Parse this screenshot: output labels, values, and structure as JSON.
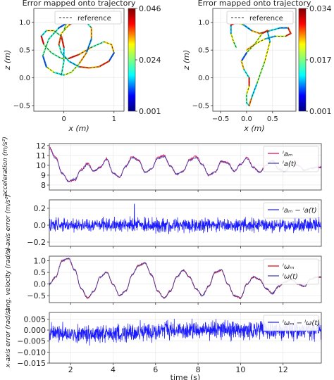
{
  "chart_data": [
    {
      "type": "line",
      "title": "Error mapped onto trajectory",
      "xlabel": "x (m)",
      "ylabel": "z (m)",
      "xlim": [
        -0.6,
        1.2
      ],
      "ylim": [
        -0.6,
        1.25
      ],
      "xticks": [
        "0",
        "1"
      ],
      "xtick_values": [
        0,
        1
      ],
      "yticks": [
        "−0.5",
        "0.0",
        "0.5",
        "1.0"
      ],
      "ytick_values": [
        -0.5,
        0,
        0.5,
        1.0
      ],
      "legend": [
        "reference"
      ],
      "legend_position": "top-right",
      "colorbar": {
        "ticks": [
          "0.046",
          "0.024",
          "0.001"
        ],
        "min": 0.001,
        "max": 0.046
      },
      "series": [
        {
          "name": "reference",
          "style": "dashed",
          "x": [
            -0.05,
            0.0,
            0.0,
            -0.05,
            -0.2,
            -0.35,
            -0.45,
            -0.4,
            -0.25,
            -0.05,
            0.1,
            0.3,
            0.55,
            0.8,
            0.95,
            1.0,
            0.9,
            0.7,
            0.5,
            0.3,
            0.1,
            -0.05,
            -0.1,
            -0.05,
            0.1,
            0.3,
            0.45,
            0.55,
            0.55,
            0.45,
            0.3,
            0.15,
            0.0,
            -0.2,
            -0.35,
            -0.42,
            -0.3,
            -0.1,
            0.05,
            0.0
          ],
          "y": [
            0.05,
            0.3,
            0.55,
            0.75,
            0.85,
            0.85,
            0.75,
            0.6,
            0.45,
            0.35,
            0.35,
            0.42,
            0.55,
            0.65,
            0.6,
            0.45,
            0.3,
            0.2,
            0.18,
            0.2,
            0.3,
            0.45,
            0.6,
            0.8,
            0.95,
            1.05,
            1.0,
            0.9,
            0.7,
            0.45,
            0.25,
            0.1,
            0.05,
            0.1,
            0.2,
            0.4,
            0.7,
            0.9,
            0.98,
            0.85
          ]
        }
      ]
    },
    {
      "type": "line",
      "title": "Error mapped onto trajectory",
      "xlabel": "x (m)",
      "ylabel": "z (m)",
      "xlim": [
        -0.65,
        0.95
      ],
      "ylim": [
        -0.6,
        1.25
      ],
      "xticks": [
        "−0.5",
        "0.0",
        "0.5"
      ],
      "xtick_values": [
        -0.5,
        0,
        0.5
      ],
      "yticks": [
        "−0.5",
        "0.0",
        "0.5",
        "1.0"
      ],
      "ytick_values": [
        -0.5,
        0,
        0.5,
        1.0
      ],
      "legend": [
        "reference"
      ],
      "legend_position": "top-right",
      "colorbar": {
        "ticks": [
          "0.034",
          "0.017",
          "0.001"
        ],
        "min": 0.001,
        "max": 0.034
      },
      "series": [
        {
          "name": "reference",
          "style": "dashed",
          "x": [
            -0.2,
            -0.25,
            -0.3,
            -0.3,
            -0.2,
            -0.05,
            0.1,
            0.25,
            0.45,
            0.65,
            0.8,
            0.85,
            0.75,
            0.55,
            0.35,
            0.15,
            0.0,
            -0.1,
            -0.05,
            0.05,
            0.05,
            0.0,
            0.0,
            0.05,
            0.1,
            0.2,
            0.35,
            0.45,
            0.4,
            0.3,
            0.15,
            0.0
          ],
          "y": [
            0.55,
            0.65,
            0.8,
            0.95,
            1.0,
            0.95,
            0.85,
            0.8,
            0.85,
            0.9,
            0.9,
            0.8,
            0.75,
            0.75,
            0.7,
            0.6,
            0.45,
            0.3,
            0.15,
            0.0,
            -0.15,
            -0.3,
            -0.45,
            -0.5,
            -0.35,
            -0.1,
            0.3,
            0.65,
            0.85,
            0.8,
            0.6,
            0.5
          ]
        }
      ]
    },
    {
      "type": "line",
      "ylabel": "acceleration (m/s²)",
      "xlim": [
        1,
        13.8
      ],
      "ylim": [
        7.5,
        12.2
      ],
      "yticks": [
        "8",
        "9",
        "10",
        "11",
        "12"
      ],
      "ytick_values": [
        8,
        9,
        10,
        11,
        12
      ],
      "legend": [
        "ᴵaₘ",
        "ᴵa(t)"
      ],
      "legend_position": "top-right",
      "series": [
        {
          "name": "ᴵaₘ",
          "color": "#e0004a",
          "x": [
            1,
            1.3,
            1.6,
            1.9,
            2.2,
            2.5,
            2.8,
            3.1,
            3.4,
            3.7,
            4.0,
            4.3,
            4.6,
            4.9,
            5.2,
            5.5,
            5.8,
            6.1,
            6.4,
            6.7,
            7.0,
            7.3,
            7.6,
            7.9,
            8.2,
            8.5,
            8.8,
            9.1,
            9.4,
            9.7,
            10.0,
            10.3,
            10.6,
            10.9,
            11.2,
            11.5,
            11.8,
            12.1,
            12.4,
            12.7,
            13.0,
            13.3,
            13.6
          ],
          "y": [
            11.8,
            10.8,
            9.2,
            8.4,
            8.5,
            9.6,
            10.2,
            9.4,
            9.8,
            10.7,
            9.2,
            8.8,
            9.9,
            10.9,
            10.5,
            9.3,
            9.6,
            10.8,
            11.0,
            9.9,
            9.1,
            9.4,
            10.6,
            10.9,
            10.1,
            9.0,
            9.3,
            10.4,
            10.3,
            9.4,
            10.1,
            10.8,
            9.8,
            9.3,
            10.0,
            10.5,
            9.6,
            9.4,
            10.3,
            10.0,
            9.5,
            9.7,
            9.8
          ]
        },
        {
          "name": "ᴵa(t)",
          "color": "#3a3ab0",
          "x": [
            1,
            1.3,
            1.6,
            1.9,
            2.2,
            2.5,
            2.8,
            3.1,
            3.4,
            3.7,
            4.0,
            4.3,
            4.6,
            4.9,
            5.2,
            5.5,
            5.8,
            6.1,
            6.4,
            6.7,
            7.0,
            7.3,
            7.6,
            7.9,
            8.2,
            8.5,
            8.8,
            9.1,
            9.4,
            9.7,
            10.0,
            10.3,
            10.6,
            10.9,
            11.2,
            11.5,
            11.8,
            12.1,
            12.4,
            12.7,
            13.0,
            13.3,
            13.6
          ],
          "y": [
            11.7,
            10.7,
            9.2,
            8.4,
            8.6,
            9.5,
            10.1,
            9.4,
            9.8,
            10.6,
            9.2,
            8.8,
            9.9,
            10.8,
            10.5,
            9.3,
            9.6,
            10.7,
            10.9,
            9.9,
            9.1,
            9.4,
            10.5,
            10.8,
            10.1,
            9.0,
            9.3,
            10.4,
            10.2,
            9.4,
            10.1,
            10.7,
            9.8,
            9.3,
            10.0,
            10.4,
            9.6,
            9.4,
            10.2,
            10.0,
            9.5,
            9.7,
            9.8
          ]
        }
      ]
    },
    {
      "type": "line",
      "ylabel": "x-axis error (m/s²)",
      "xlim": [
        1,
        13.8
      ],
      "ylim": [
        -0.25,
        0.3
      ],
      "yticks": [
        "−0.2",
        "0.0",
        "0.2"
      ],
      "ytick_values": [
        -0.2,
        0,
        0.2
      ],
      "legend": [
        "ᴵaₘ − ᴵa(t)"
      ],
      "legend_position": "top-right",
      "series": [
        {
          "name": "ᴵaₘ − ᴵa(t)",
          "color": "#1a1aff",
          "noise_amplitude": 0.12,
          "spike_at": 5.0,
          "spike_value": 0.25
        }
      ]
    },
    {
      "type": "line",
      "ylabel": "ang. velocity (rad/s)",
      "xlim": [
        1,
        13.8
      ],
      "ylim": [
        -0.8,
        1.2
      ],
      "yticks": [
        "−0.5",
        "0.0",
        "0.5",
        "1.0"
      ],
      "ytick_values": [
        -0.5,
        0,
        0.5,
        1.0
      ],
      "legend": [
        "ᴵωₘ",
        "ᴵω(t)"
      ],
      "legend_position": "top-right",
      "series": [
        {
          "name": "ᴵωₘ",
          "color": "#e00000",
          "x": [
            1,
            1.3,
            1.6,
            1.9,
            2.2,
            2.5,
            2.8,
            3.1,
            3.4,
            3.7,
            4.0,
            4.3,
            4.6,
            4.9,
            5.2,
            5.5,
            5.8,
            6.1,
            6.4,
            6.7,
            7.0,
            7.3,
            7.6,
            7.9,
            8.2,
            8.5,
            8.8,
            9.1,
            9.4,
            9.7,
            10.0,
            10.3,
            10.6,
            10.9,
            11.2,
            11.5,
            11.8,
            12.1,
            12.4,
            12.7,
            13.0,
            13.3,
            13.6
          ],
          "y": [
            0.0,
            0.3,
            1.0,
            1.1,
            0.6,
            -0.2,
            -0.6,
            -0.3,
            0.3,
            0.5,
            0.0,
            -0.5,
            -0.3,
            0.4,
            0.8,
            0.9,
            0.4,
            -0.3,
            -0.6,
            -0.3,
            0.3,
            0.6,
            0.3,
            -0.2,
            -0.5,
            -0.1,
            0.5,
            0.6,
            0.0,
            -0.5,
            -0.6,
            0.0,
            0.3,
            0.2,
            -0.2,
            -0.4,
            -0.1,
            0.1,
            0.2,
            0.0,
            -0.1,
            0.2,
            0.3
          ]
        },
        {
          "name": "ᴵω(t)",
          "color": "#3a3ab0",
          "x": [
            1,
            1.3,
            1.6,
            1.9,
            2.2,
            2.5,
            2.8,
            3.1,
            3.4,
            3.7,
            4.0,
            4.3,
            4.6,
            4.9,
            5.2,
            5.5,
            5.8,
            6.1,
            6.4,
            6.7,
            7.0,
            7.3,
            7.6,
            7.9,
            8.2,
            8.5,
            8.8,
            9.1,
            9.4,
            9.7,
            10.0,
            10.3,
            10.6,
            10.9,
            11.2,
            11.5,
            11.8,
            12.1,
            12.4,
            12.7,
            13.0,
            13.3,
            13.6
          ],
          "y": [
            0.0,
            0.3,
            1.0,
            1.1,
            0.6,
            -0.2,
            -0.6,
            -0.3,
            0.3,
            0.5,
            0.0,
            -0.5,
            -0.3,
            0.4,
            0.8,
            0.9,
            0.4,
            -0.3,
            -0.6,
            -0.3,
            0.3,
            0.6,
            0.3,
            -0.2,
            -0.5,
            -0.1,
            0.5,
            0.6,
            0.0,
            -0.5,
            -0.6,
            0.0,
            0.3,
            0.2,
            -0.2,
            -0.4,
            -0.1,
            0.1,
            0.2,
            0.0,
            -0.1,
            0.2,
            0.3
          ]
        }
      ]
    },
    {
      "type": "line",
      "ylabel": "x-axis error (rad/s)",
      "xlabel": "time (s)",
      "xlim": [
        1,
        13.8
      ],
      "ylim": [
        -0.015,
        0.008
      ],
      "xticks": [
        "2",
        "4",
        "6",
        "8",
        "10",
        "12"
      ],
      "xtick_values": [
        2,
        4,
        6,
        8,
        10,
        12
      ],
      "yticks": [
        "−0.015",
        "−0.010",
        "−0.005",
        "0.000",
        "0.005"
      ],
      "ytick_values": [
        -0.015,
        -0.01,
        -0.005,
        0,
        0.005
      ],
      "legend": [
        "ᴵωₘ − ᴵω(t)"
      ],
      "legend_position": "top-right",
      "series": [
        {
          "name": "ᴵωₘ − ᴵω(t)",
          "color": "#1a1aff",
          "noise_amplitude": 0.006
        }
      ]
    }
  ]
}
